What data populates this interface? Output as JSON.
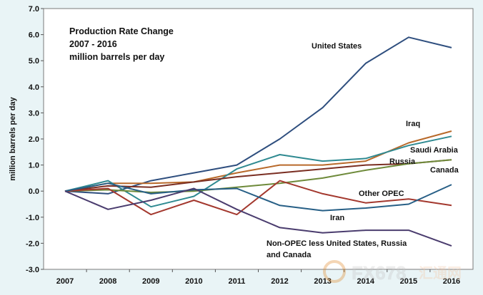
{
  "chart_data": {
    "type": "line",
    "title": [
      "Production  Rate Change",
      "2007 - 2016",
      "million  barrels  per day"
    ],
    "ylabel": "million barrels per day",
    "xlabel": "",
    "x": [
      "2007",
      "2008",
      "2009",
      "2010",
      "2011",
      "2012",
      "2013",
      "2014",
      "2015",
      "2016"
    ],
    "ylim": [
      -3.0,
      7.0
    ],
    "yticks": [
      "7.0",
      "6.0",
      "5.0",
      "4.0",
      "3.0",
      "2.0",
      "1.0",
      "0.0",
      "-1.0",
      "-2.0",
      "-3.0"
    ],
    "grid": false,
    "series": [
      {
        "name": "United States",
        "label_lines": [
          "United States"
        ],
        "color": "#2e4e7e",
        "values": [
          0,
          -0.1,
          0.4,
          0.7,
          1.0,
          2.0,
          3.2,
          4.9,
          5.9,
          5.5
        ]
      },
      {
        "name": "Iraq",
        "label_lines": [
          "Iraq"
        ],
        "color": "#b8692a",
        "values": [
          0,
          0.3,
          0.3,
          0.35,
          0.7,
          1.0,
          1.0,
          1.15,
          1.85,
          2.3
        ]
      },
      {
        "name": "Saudi Arabia",
        "label_lines": [
          "Saudi Arabia"
        ],
        "color": "#2f8a91",
        "values": [
          0,
          0.4,
          -0.6,
          -0.2,
          0.85,
          1.4,
          1.15,
          1.25,
          1.75,
          2.1
        ]
      },
      {
        "name": "Russia",
        "label_lines": [
          "Russia"
        ],
        "color": "#7a2e22",
        "values": [
          0,
          0.2,
          0.15,
          0.35,
          0.55,
          0.7,
          0.85,
          1.0,
          1.05,
          1.2
        ]
      },
      {
        "name": "Canada",
        "label_lines": [
          "Canada"
        ],
        "color": "#6e8a3a",
        "values": [
          0,
          0.05,
          -0.05,
          0.0,
          0.15,
          0.3,
          0.5,
          0.8,
          1.05,
          1.2
        ]
      },
      {
        "name": "Other OPEC",
        "label_lines": [
          "Other OPEC"
        ],
        "color": "#a3382e",
        "values": [
          0,
          0.1,
          -0.9,
          -0.35,
          -0.9,
          0.4,
          -0.1,
          -0.45,
          -0.3,
          -0.55
        ]
      },
      {
        "name": "Iran",
        "label_lines": [
          "Iran"
        ],
        "color": "#275f86",
        "values": [
          0,
          0.3,
          -0.1,
          0.05,
          0.1,
          -0.55,
          -0.75,
          -0.65,
          -0.5,
          0.25
        ]
      },
      {
        "name": "Non-OPEC less United States, Russia and Canada",
        "label_lines": [
          "Non-OPEC less United States, Russia",
          "and Canada"
        ],
        "color": "#4a3c6e",
        "values": [
          0,
          -0.7,
          -0.35,
          0.1,
          -0.7,
          -1.4,
          -1.6,
          -1.5,
          -1.5,
          -2.1
        ]
      }
    ]
  },
  "watermark": {
    "brand": "FX678",
    "suffix": "汇通网"
  }
}
